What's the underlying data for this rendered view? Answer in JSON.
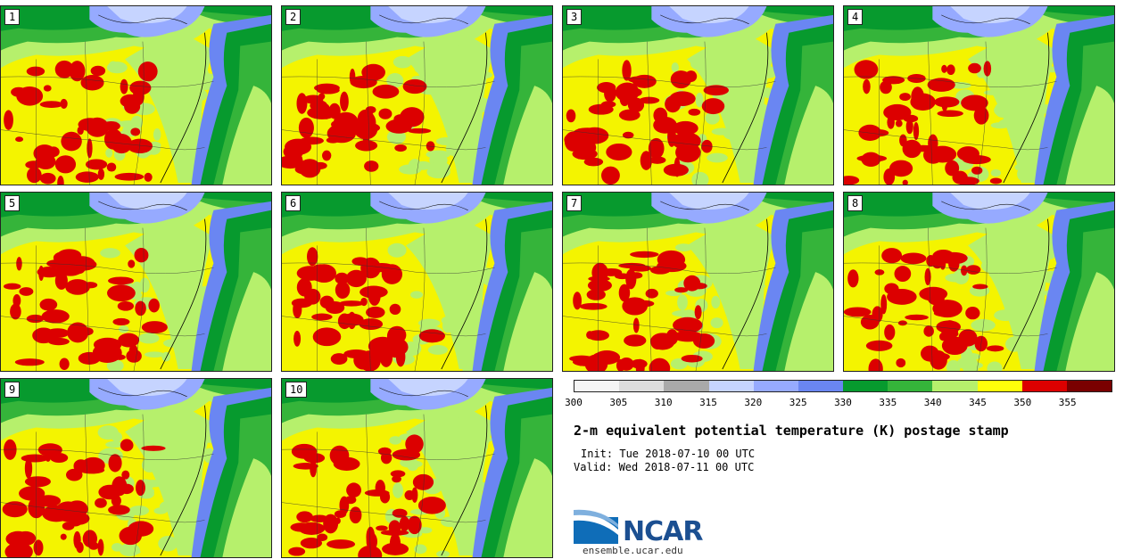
{
  "panels": [
    {
      "label": "1"
    },
    {
      "label": "2"
    },
    {
      "label": "3"
    },
    {
      "label": "4"
    },
    {
      "label": "5"
    },
    {
      "label": "6"
    },
    {
      "label": "7"
    },
    {
      "label": "8"
    },
    {
      "label": "9"
    },
    {
      "label": "10"
    }
  ],
  "colorbar": {
    "colors": [
      "#f5f5f5",
      "#dcdcdc",
      "#a9a9a9",
      "#c6d4ff",
      "#96aaff",
      "#6a86f2",
      "#079a2e",
      "#35b43a",
      "#b6f06c",
      "#ffff0a",
      "#dc0000",
      "#7a0000"
    ],
    "ticks": [
      "300",
      "305",
      "310",
      "315",
      "320",
      "325",
      "330",
      "335",
      "340",
      "345",
      "350",
      "355"
    ]
  },
  "field_colors": {
    "dark_green": "#079a2e",
    "mid_green": "#35b43a",
    "light_green": "#b6f06c",
    "yellow": "#f4f400",
    "red": "#dc0000",
    "light_blue": "#96aaff",
    "blue": "#6a86f2",
    "pale_blue": "#c6d4ff"
  },
  "title": "2-m equivalent potential temperature (K) postage stamp",
  "init": "Init: Tue 2018-07-10 00 UTC",
  "valid": "Valid: Wed 2018-07-11 00 UTC",
  "logo": {
    "text": "NCAR",
    "website": "ensemble.ucar.edu"
  }
}
